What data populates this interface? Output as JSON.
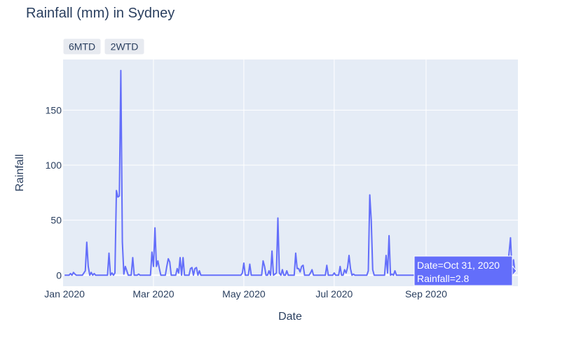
{
  "chart_data": {
    "type": "line",
    "title": "Rainfall (mm) in Sydney",
    "xlabel": "Date",
    "ylabel": "Rainfall",
    "x_range": [
      "2019-12-31",
      "2020-11-02"
    ],
    "ylim": [
      -10,
      196
    ],
    "y_ticks": [
      0,
      50,
      100,
      150
    ],
    "x_ticks": [
      {
        "date": "2020-01-01",
        "label": "Jan 2020"
      },
      {
        "date": "2020-03-01",
        "label": "Mar 2020"
      },
      {
        "date": "2020-05-01",
        "label": "May 2020"
      },
      {
        "date": "2020-07-01",
        "label": "Jul 2020"
      },
      {
        "date": "2020-09-01",
        "label": "Sep 2020"
      }
    ],
    "grid": true,
    "colors": {
      "line": "#636efa",
      "plot_bg": "#e5ecf6",
      "grid": "#ffffff",
      "text": "#2a3f5f"
    },
    "buttons": [
      "6MTD",
      "2WTD"
    ],
    "hover": {
      "line1": "Date=Oct 31, 2020",
      "line2": "Rainfall=2.8"
    },
    "series": [
      {
        "points": [
          [
            "2020-01-01",
            0
          ],
          [
            "2020-01-04",
            0
          ],
          [
            "2020-01-05",
            1.5
          ],
          [
            "2020-01-06",
            0
          ],
          [
            "2020-01-07",
            2.5
          ],
          [
            "2020-01-08",
            1
          ],
          [
            "2020-01-09",
            0
          ],
          [
            "2020-01-13",
            0
          ],
          [
            "2020-01-15",
            4
          ],
          [
            "2020-01-16",
            30
          ],
          [
            "2020-01-17",
            8
          ],
          [
            "2020-01-18",
            0
          ],
          [
            "2020-01-19",
            2.5
          ],
          [
            "2020-01-20",
            0
          ],
          [
            "2020-01-21",
            1.5
          ],
          [
            "2020-01-22",
            0
          ],
          [
            "2020-01-30",
            0
          ],
          [
            "2020-01-31",
            20
          ],
          [
            "2020-02-01",
            0
          ],
          [
            "2020-02-02",
            2
          ],
          [
            "2020-02-03",
            0
          ],
          [
            "2020-02-04",
            2
          ],
          [
            "2020-02-05",
            77
          ],
          [
            "2020-02-06",
            71
          ],
          [
            "2020-02-07",
            72
          ],
          [
            "2020-02-08",
            186
          ],
          [
            "2020-02-09",
            30
          ],
          [
            "2020-02-10",
            1
          ],
          [
            "2020-02-11",
            8
          ],
          [
            "2020-02-12",
            4
          ],
          [
            "2020-02-13",
            0
          ],
          [
            "2020-02-15",
            0
          ],
          [
            "2020-02-16",
            16
          ],
          [
            "2020-02-17",
            0
          ],
          [
            "2020-02-19",
            0
          ],
          [
            "2020-02-20",
            1
          ],
          [
            "2020-02-21",
            0
          ],
          [
            "2020-02-28",
            0
          ],
          [
            "2020-02-29",
            21
          ],
          [
            "2020-03-01",
            8
          ],
          [
            "2020-03-02",
            43
          ],
          [
            "2020-03-03",
            8
          ],
          [
            "2020-03-04",
            13
          ],
          [
            "2020-03-05",
            6
          ],
          [
            "2020-03-06",
            0
          ],
          [
            "2020-03-09",
            0
          ],
          [
            "2020-03-10",
            8
          ],
          [
            "2020-03-11",
            15
          ],
          [
            "2020-03-12",
            12
          ],
          [
            "2020-03-13",
            0
          ],
          [
            "2020-03-16",
            0
          ],
          [
            "2020-03-17",
            6
          ],
          [
            "2020-03-18",
            2
          ],
          [
            "2020-03-19",
            16
          ],
          [
            "2020-03-20",
            0
          ],
          [
            "2020-03-21",
            16
          ],
          [
            "2020-03-22",
            0
          ],
          [
            "2020-03-25",
            0
          ],
          [
            "2020-03-26",
            6
          ],
          [
            "2020-03-27",
            7
          ],
          [
            "2020-03-28",
            0
          ],
          [
            "2020-03-29",
            6
          ],
          [
            "2020-03-30",
            7
          ],
          [
            "2020-03-31",
            0
          ],
          [
            "2020-04-01",
            4
          ],
          [
            "2020-04-02",
            0
          ],
          [
            "2020-04-29",
            0
          ],
          [
            "2020-04-30",
            2
          ],
          [
            "2020-05-01",
            11
          ],
          [
            "2020-05-02",
            0
          ],
          [
            "2020-05-04",
            0
          ],
          [
            "2020-05-05",
            10
          ],
          [
            "2020-05-06",
            0
          ],
          [
            "2020-05-13",
            0
          ],
          [
            "2020-05-14",
            13
          ],
          [
            "2020-05-15",
            8
          ],
          [
            "2020-05-16",
            0
          ],
          [
            "2020-05-17",
            0
          ],
          [
            "2020-05-18",
            4
          ],
          [
            "2020-05-19",
            0
          ],
          [
            "2020-05-20",
            22
          ],
          [
            "2020-05-21",
            0
          ],
          [
            "2020-05-23",
            2
          ],
          [
            "2020-05-24",
            52
          ],
          [
            "2020-05-25",
            2
          ],
          [
            "2020-05-26",
            0
          ],
          [
            "2020-05-27",
            5
          ],
          [
            "2020-05-28",
            0
          ],
          [
            "2020-05-29",
            0
          ],
          [
            "2020-05-30",
            4
          ],
          [
            "2020-05-31",
            0
          ],
          [
            "2020-06-04",
            0
          ],
          [
            "2020-06-05",
            20
          ],
          [
            "2020-06-06",
            6
          ],
          [
            "2020-06-07",
            6
          ],
          [
            "2020-06-08",
            3
          ],
          [
            "2020-06-09",
            8
          ],
          [
            "2020-06-10",
            9
          ],
          [
            "2020-06-11",
            0
          ],
          [
            "2020-06-14",
            0
          ],
          [
            "2020-06-15",
            2
          ],
          [
            "2020-06-16",
            5
          ],
          [
            "2020-06-17",
            0
          ],
          [
            "2020-06-25",
            0
          ],
          [
            "2020-06-26",
            9
          ],
          [
            "2020-06-27",
            0
          ],
          [
            "2020-06-30",
            0
          ],
          [
            "2020-07-01",
            2
          ],
          [
            "2020-07-02",
            0
          ],
          [
            "2020-07-04",
            0
          ],
          [
            "2020-07-05",
            8
          ],
          [
            "2020-07-06",
            0
          ],
          [
            "2020-07-07",
            0
          ],
          [
            "2020-07-08",
            5
          ],
          [
            "2020-07-09",
            2
          ],
          [
            "2020-07-10",
            7
          ],
          [
            "2020-07-11",
            18
          ],
          [
            "2020-07-12",
            6
          ],
          [
            "2020-07-13",
            0
          ],
          [
            "2020-07-14",
            1
          ],
          [
            "2020-07-15",
            0
          ],
          [
            "2020-07-23",
            0
          ],
          [
            "2020-07-24",
            4
          ],
          [
            "2020-07-25",
            73
          ],
          [
            "2020-07-26",
            50
          ],
          [
            "2020-07-27",
            5
          ],
          [
            "2020-07-28",
            0
          ],
          [
            "2020-08-04",
            0
          ],
          [
            "2020-08-05",
            18
          ],
          [
            "2020-08-06",
            2
          ],
          [
            "2020-08-07",
            36
          ],
          [
            "2020-08-08",
            0
          ],
          [
            "2020-08-09",
            1
          ],
          [
            "2020-08-10",
            0
          ],
          [
            "2020-08-11",
            4
          ],
          [
            "2020-08-12",
            0
          ],
          [
            "2020-10-25",
            0
          ],
          [
            "2020-10-26",
            6
          ],
          [
            "2020-10-27",
            20
          ],
          [
            "2020-10-28",
            34
          ],
          [
            "2020-10-29",
            5
          ],
          [
            "2020-10-30",
            14
          ],
          [
            "2020-10-31",
            2.8
          ]
        ]
      }
    ]
  }
}
